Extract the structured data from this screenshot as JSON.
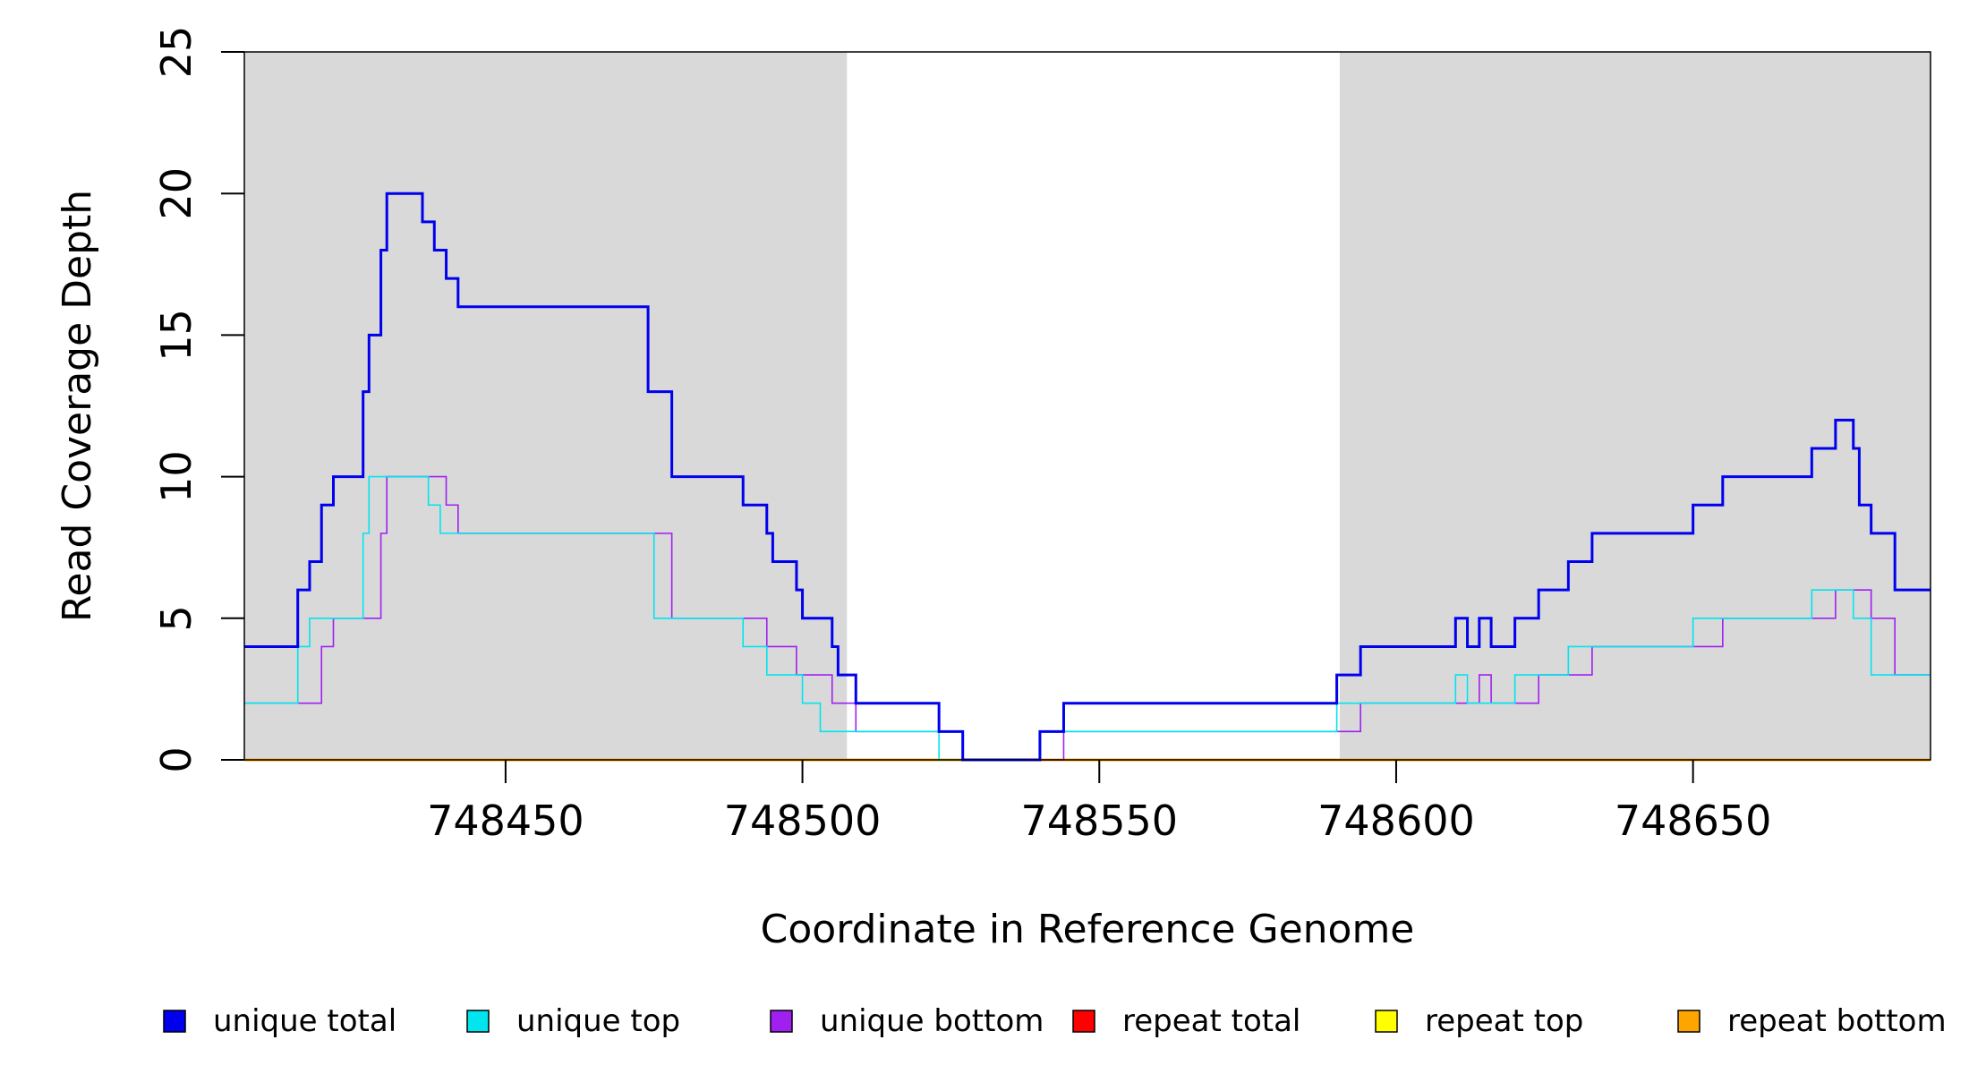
{
  "chart_data": {
    "type": "line",
    "xlabel": "Coordinate in Reference Genome",
    "ylabel": "Read Coverage Depth",
    "xlim": [
      748406,
      748690
    ],
    "ylim": [
      0,
      25
    ],
    "x_ticks": [
      748450,
      748500,
      748550,
      748600,
      748650
    ],
    "x_tick_labels": [
      "748450",
      "748500",
      "748550",
      "748600",
      "748650"
    ],
    "y_ticks": [
      0,
      5,
      10,
      15,
      20,
      25
    ],
    "y_tick_labels": [
      "0",
      "5",
      "10",
      "15",
      "20",
      "25"
    ],
    "shaded_regions": [
      {
        "x_start": 748406,
        "x_end": 748507.5,
        "color": "#d9d9d9"
      },
      {
        "x_start": 748590.5,
        "x_end": 748690,
        "color": "#d9d9d9"
      }
    ],
    "grid": false,
    "legend_position": "bottom",
    "series": [
      {
        "name": "unique total",
        "color": "#0000ee",
        "style": "step",
        "width": 3,
        "x": [
          748406,
          748415,
          748417,
          748419,
          748421,
          748423,
          748426,
          748427,
          748429,
          748430,
          748432,
          748436,
          748438,
          748440,
          748442,
          748474,
          748478,
          748490,
          748494,
          748495,
          748499,
          748500,
          748502,
          748505,
          748506,
          748509,
          748523,
          748527,
          748540,
          748544,
          748590,
          748594,
          748610,
          748612,
          748614,
          748616,
          748620,
          748624,
          748629,
          748633,
          748650,
          748655,
          748670,
          748674,
          748677,
          748678,
          748680,
          748684,
          748690
        ],
        "y": [
          4,
          6,
          7,
          9,
          10,
          10,
          13,
          15,
          18,
          20,
          20,
          19,
          18,
          17,
          16,
          13,
          10,
          9,
          8,
          7,
          6,
          5,
          5,
          4,
          3,
          2,
          1,
          0,
          1,
          2,
          3,
          4,
          5,
          4,
          5,
          4,
          5,
          6,
          7,
          8,
          9,
          10,
          11,
          12,
          11,
          9,
          8,
          6,
          6
        ]
      },
      {
        "name": "unique top",
        "color": "#00e5ee",
        "style": "step",
        "width": 1.6,
        "x": [
          748406,
          748415,
          748417,
          748426,
          748427,
          748437,
          748439,
          748475,
          748490,
          748494,
          748500,
          748503,
          748506,
          748509,
          748523,
          748527,
          748540,
          748544,
          748590,
          748594,
          748610,
          748612,
          748620,
          748624,
          748629,
          748633,
          748650,
          748655,
          748670,
          748677,
          748680,
          748684,
          748690
        ],
        "y": [
          2,
          4,
          5,
          8,
          10,
          9,
          8,
          5,
          4,
          3,
          2,
          1,
          1,
          1,
          0,
          0,
          1,
          1,
          2,
          2,
          3,
          2,
          3,
          3,
          4,
          4,
          5,
          5,
          6,
          5,
          3,
          3,
          3
        ]
      },
      {
        "name": "unique bottom",
        "color": "#a020f0",
        "style": "step",
        "width": 1.6,
        "x": [
          748406,
          748419,
          748421,
          748429,
          748430,
          748440,
          748442,
          748478,
          748494,
          748499,
          748505,
          748509,
          748523,
          748527,
          748540,
          748544,
          748590,
          748594,
          748614,
          748616,
          748624,
          748633,
          748655,
          748674,
          748680,
          748684,
          748690
        ],
        "y": [
          2,
          4,
          5,
          8,
          10,
          9,
          8,
          5,
          4,
          3,
          2,
          1,
          1,
          0,
          0,
          1,
          1,
          2,
          3,
          2,
          3,
          4,
          5,
          6,
          5,
          3,
          3
        ]
      },
      {
        "name": "repeat total",
        "color": "#ff0000",
        "style": "step",
        "width": 3,
        "x": [
          748406,
          748690
        ],
        "y": [
          0,
          0
        ]
      },
      {
        "name": "repeat top",
        "color": "#ffff00",
        "style": "step",
        "width": 3,
        "x": [
          748406,
          748690
        ],
        "y": [
          0,
          0
        ]
      },
      {
        "name": "repeat bottom",
        "color": "#ffa500",
        "style": "step",
        "width": 3,
        "x": [
          748406,
          748690
        ],
        "y": [
          0,
          0
        ]
      }
    ]
  }
}
